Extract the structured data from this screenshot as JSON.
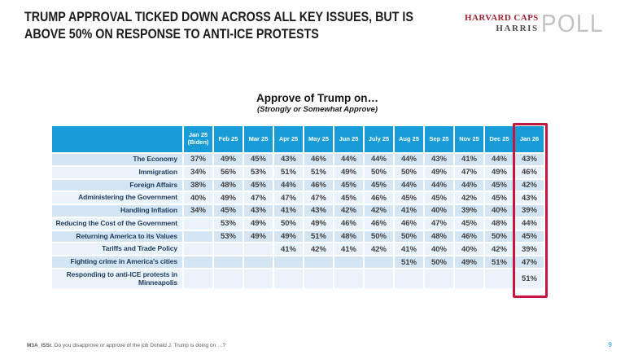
{
  "title": {
    "line1": "TRUMP APPROVAL TICKED DOWN ACROSS ALL KEY ISSUES, BUT IS",
    "line2": "ABOVE 50% ON RESPONSE TO ANTI-ICE PROTESTS"
  },
  "logo": {
    "line1": "HARVARD CAPS",
    "line2": "HARRIS",
    "poll": "POLL"
  },
  "chart_data": {
    "type": "table",
    "title": "Approve of Trump on…",
    "subtitle": "(Strongly or Somewhat Approve)",
    "columns": [
      "Jan 25\n(Biden)",
      "Feb 25",
      "Mar 25",
      "Apr 25",
      "May 25",
      "Jun 25",
      "July 25",
      "Aug 25",
      "Sep 25",
      "Nov 25",
      "Dec 25",
      "Jan 26"
    ],
    "highlighted_column": "Jan 26",
    "rows": [
      {
        "label": "The Economy",
        "values": [
          "37%",
          "49%",
          "45%",
          "43%",
          "46%",
          "44%",
          "44%",
          "44%",
          "43%",
          "41%",
          "44%",
          "43%"
        ]
      },
      {
        "label": "Immigration",
        "values": [
          "34%",
          "56%",
          "53%",
          "51%",
          "51%",
          "49%",
          "50%",
          "50%",
          "49%",
          "47%",
          "49%",
          "46%"
        ]
      },
      {
        "label": "Foreign Affairs",
        "values": [
          "38%",
          "48%",
          "45%",
          "44%",
          "46%",
          "45%",
          "45%",
          "44%",
          "44%",
          "44%",
          "45%",
          "42%"
        ]
      },
      {
        "label": "Administering the Government",
        "values": [
          "40%",
          "49%",
          "47%",
          "47%",
          "47%",
          "45%",
          "46%",
          "45%",
          "45%",
          "42%",
          "45%",
          "43%"
        ]
      },
      {
        "label": "Handling Inflation",
        "values": [
          "34%",
          "45%",
          "43%",
          "41%",
          "43%",
          "42%",
          "42%",
          "41%",
          "40%",
          "39%",
          "40%",
          "39%"
        ]
      },
      {
        "label": "Reducing the Cost of the Government",
        "values": [
          "",
          "53%",
          "49%",
          "50%",
          "49%",
          "46%",
          "46%",
          "46%",
          "47%",
          "45%",
          "48%",
          "44%"
        ]
      },
      {
        "label": "Returning America to its Values",
        "values": [
          "",
          "53%",
          "49%",
          "49%",
          "51%",
          "48%",
          "50%",
          "50%",
          "48%",
          "46%",
          "50%",
          "45%"
        ]
      },
      {
        "label": "Tariffs and Trade Policy",
        "values": [
          "",
          "",
          "",
          "41%",
          "42%",
          "41%",
          "42%",
          "41%",
          "40%",
          "40%",
          "42%",
          "39%"
        ]
      },
      {
        "label": "Fighting crime in America's cities",
        "values": [
          "",
          "",
          "",
          "",
          "",
          "",
          "",
          "51%",
          "50%",
          "49%",
          "51%",
          "47%"
        ]
      },
      {
        "label": "Responding to anti-ICE protests in Minneapolis",
        "values": [
          "",
          "",
          "",
          "",
          "",
          "",
          "",
          "",
          "",
          "",
          "",
          "51%"
        ]
      }
    ]
  },
  "footer": {
    "source_label": "M3A_ISSr.",
    "source_text": "Do you disapprove or approve of the job Donald J. Trump is doing on …?",
    "page_number": "9"
  },
  "colors": {
    "header_bg": "#189bd7",
    "row_stripe_dark": "#d3e4f3",
    "row_stripe_light": "#eaf2fa",
    "highlight_border": "#c4163f",
    "logo_red": "#9e2335",
    "logo_gray": "#4a4a4a",
    "page_number_blue": "#5bb9e6"
  }
}
